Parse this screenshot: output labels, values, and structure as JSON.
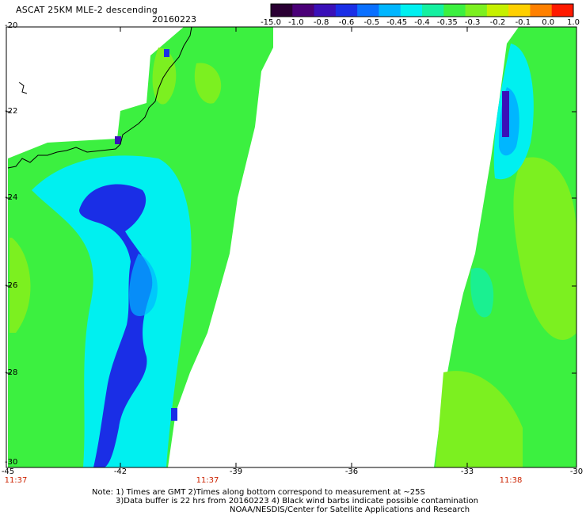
{
  "header": {
    "title": "ASCAT 25KM MLE-2 descending",
    "date": "20160223"
  },
  "colorbar": {
    "labels": [
      "-15.0",
      "-1.0",
      "-0.8",
      "-0.6",
      "-0.5",
      "-0.45",
      "-0.4",
      "-0.35",
      "-0.3",
      "-0.2",
      "-0.1",
      "0.0",
      "1.0"
    ],
    "colors": [
      "#2a0033",
      "#4a0077",
      "#3a10b8",
      "#1a2ee6",
      "#0a70ff",
      "#00b6ff",
      "#00f0f0",
      "#14f0a0",
      "#3cf040",
      "#7cf020",
      "#c6f000",
      "#ffd000",
      "#ff8000",
      "#ff1a00"
    ]
  },
  "axes": {
    "y_ticks": [
      "-20",
      "-22",
      "-24",
      "-26",
      "-28",
      "-30"
    ],
    "x_ticks": [
      "-45",
      "-42",
      "-39",
      "-36",
      "-33",
      "-30"
    ],
    "time_labels": [
      "11:37",
      "11:37",
      "11:38"
    ]
  },
  "notes": {
    "line1": "Note: 1) Times are GMT 2)Times along bottom correspond to measurement at ~25S",
    "line2": "3)Data buffer is 22 hrs from 20160223 4) Black wind barbs indicate possible contamination",
    "line3": "NOAA/NESDIS/Center for Satellite Applications and Research"
  },
  "palette": {
    "green": "#3cf040",
    "lime": "#7cf020",
    "cyan": "#00f0f0",
    "aqua": "#14f0a0",
    "blue": "#1a2ee6",
    "skyblue": "#00b6ff",
    "indigo": "#3a10b8"
  }
}
